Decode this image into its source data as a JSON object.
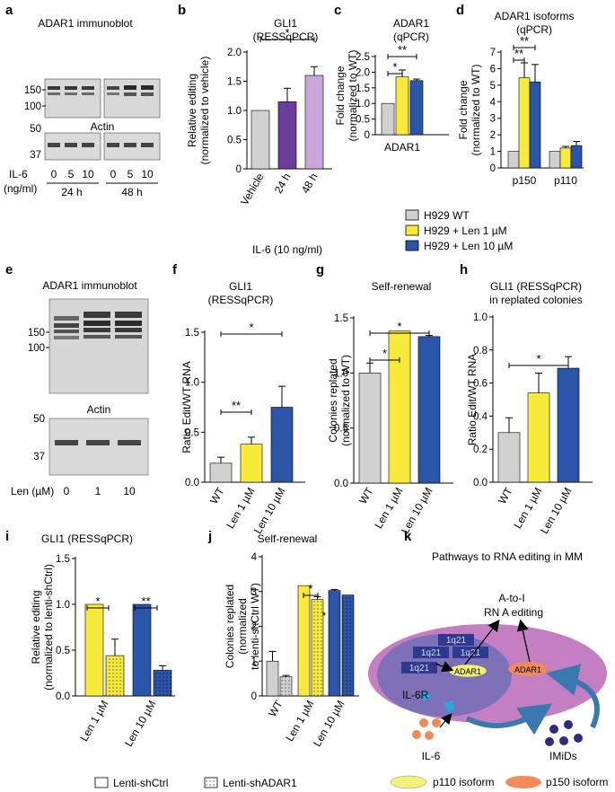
{
  "colors": {
    "wt": "#d0d0d0",
    "len1": "#f7ea3a",
    "len10": "#2a55a8",
    "p24": "#6a3d9a",
    "p48": "#c8a8d8",
    "cell_outer": "#c47ec2",
    "cell_inner": "#7d70b8",
    "box": "#2e3a8f",
    "ellipse_yellow": "#f3f07a",
    "ellipse_orange": "#f08a5a",
    "arrow": "#3a78b0",
    "imid": "#2d2a80"
  },
  "panel_labels": {
    "a": "a",
    "b": "b",
    "c": "c",
    "d": "d",
    "e": "e",
    "f": "f",
    "g": "g",
    "h": "h",
    "i": "i",
    "j": "j",
    "k": "k"
  },
  "panel_a": {
    "title": "ADAR1 immunoblot",
    "mw_top": [
      "150",
      "100"
    ],
    "actin": "Actin",
    "mw_bottom": [
      "50",
      "37"
    ],
    "il6": "IL-6",
    "unit": "(ng/ml)",
    "doses": [
      "0",
      "5",
      "10",
      "0",
      "5",
      "10"
    ],
    "times": [
      "24 h",
      "48 h"
    ]
  },
  "panel_e": {
    "title": "ADAR1 immunoblot",
    "mw_top": [
      "150",
      "100"
    ],
    "actin": "Actin",
    "mw_bottom": [
      "50",
      "37"
    ],
    "len_label": "Len (µM)",
    "doses": [
      "0",
      "1",
      "10"
    ]
  },
  "legend_cd": [
    "H929 WT",
    "H929 + Len 1 µM",
    "H929 + Len 10 µM"
  ],
  "legend_ij": [
    "Lenti-shCtrl",
    "Lenti-shADAR1"
  ],
  "chart_data": [
    {
      "id": "b",
      "type": "bar",
      "title": [
        "GLI1",
        "(RESSqPCR)"
      ],
      "ylabel": [
        "Relative editing",
        "(normalized to vehicle)"
      ],
      "xlabel": "IL-6 (10 ng/ml)",
      "categories": [
        "Vehicle",
        "24 h",
        "48 h"
      ],
      "values": [
        1.0,
        1.15,
        1.6
      ],
      "errors": [
        0,
        0.23,
        0.15
      ],
      "ylim": [
        0,
        2.0
      ],
      "yticks": [
        "0",
        "0.5",
        "1.0",
        "1.5",
        "2.0"
      ],
      "significance": [
        {
          "from": 0,
          "to": 2,
          "label": "*"
        }
      ]
    },
    {
      "id": "c",
      "type": "bar",
      "title": [
        "ADAR1",
        "(qPCR)"
      ],
      "ylabel": [
        "Fold change",
        "(normalized to WT)"
      ],
      "categories": [
        "ADAR1"
      ],
      "series": [
        {
          "name": "H929 WT",
          "values": [
            1.0
          ],
          "errors": [
            0
          ]
        },
        {
          "name": "H929 + Len 1 µM",
          "values": [
            1.85
          ],
          "errors": [
            0.22
          ]
        },
        {
          "name": "H929 + Len 10 µM",
          "values": [
            1.73
          ],
          "errors": [
            0.05
          ]
        }
      ],
      "ylim": [
        0,
        2.5
      ],
      "yticks": [
        "0",
        "0.5",
        "1.0",
        "1.5",
        "2.0",
        "2.5"
      ],
      "significance": [
        {
          "label": "*"
        },
        {
          "label": "**"
        }
      ]
    },
    {
      "id": "d",
      "type": "bar",
      "title": [
        "ADAR1 isoforms",
        "(qPCR)"
      ],
      "ylabel": [
        "Fold change",
        "(normalized to WT)"
      ],
      "categories": [
        "p150",
        "p110"
      ],
      "series": [
        {
          "name": "H929 WT",
          "values": [
            1.0,
            1.0
          ],
          "errors": [
            0,
            0
          ]
        },
        {
          "name": "H929 + Len 1 µM",
          "values": [
            5.45,
            1.2
          ],
          "errors": [
            0.9,
            0.1
          ]
        },
        {
          "name": "H929 + Len 10 µM",
          "values": [
            5.2,
            1.35
          ],
          "errors": [
            1.05,
            0.25
          ]
        }
      ],
      "ylim": [
        0,
        7
      ],
      "yticks": [
        "0",
        "1",
        "2",
        "3",
        "4",
        "5",
        "6",
        "7"
      ],
      "significance": [
        {
          "label": "**"
        },
        {
          "label": "**"
        }
      ]
    },
    {
      "id": "f",
      "type": "bar",
      "title": [
        "GLI1",
        "(RESSqPCR)"
      ],
      "ylabel": [
        "Ratio Edit/WT RNA"
      ],
      "categories": [
        "WT",
        "Len 1 µM",
        "Len 10 µM"
      ],
      "values": [
        0.19,
        0.38,
        0.75
      ],
      "errors": [
        0.06,
        0.07,
        0.21
      ],
      "ylim": [
        0,
        1.5
      ],
      "yticks": [
        "0.0",
        "0.5",
        "1.0",
        "1.5"
      ],
      "significance": [
        {
          "from": 0,
          "to": 1,
          "label": "**"
        },
        {
          "from": 0,
          "to": 2,
          "label": "*"
        }
      ]
    },
    {
      "id": "g",
      "type": "bar",
      "title": [
        "Self-renewal"
      ],
      "ylabel": [
        "Colonies replated",
        "(normalized to WT)"
      ],
      "categories": [
        "WT",
        "Len 1 µM",
        "Len 10 µM"
      ],
      "values": [
        1.0,
        1.38,
        1.33
      ],
      "errors": [
        0.09,
        0,
        0.01
      ],
      "ylim": [
        0,
        1.5
      ],
      "yticks": [
        "0.0",
        "0.5",
        "1.0",
        "1.5"
      ],
      "significance": [
        {
          "from": 0,
          "to": 1,
          "label": "*"
        },
        {
          "from": 0,
          "to": 2,
          "label": "*"
        }
      ]
    },
    {
      "id": "h",
      "type": "bar",
      "title": [
        "GLI1 (RESSqPCR)",
        "in replated colonies"
      ],
      "ylabel": [
        "Ratio Edit/WT RNA"
      ],
      "categories": [
        "WT",
        "Len 1 µM",
        "Len 10 µM"
      ],
      "values": [
        0.3,
        0.54,
        0.69
      ],
      "errors": [
        0.09,
        0.12,
        0.07
      ],
      "ylim": [
        0,
        1.0
      ],
      "yticks": [
        "0.0",
        "0.2",
        "0.4",
        "0.6",
        "0.8",
        "1.0"
      ],
      "significance": [
        {
          "from": 0,
          "to": 2,
          "label": "*"
        }
      ]
    },
    {
      "id": "i",
      "type": "bar",
      "title": [
        "GLI1 (RESSqPCR)"
      ],
      "ylabel": [
        "Relative editing",
        "(normalized to lenti-shCtrl)"
      ],
      "categories": [
        "Len 1 µM",
        "Len 10 µM"
      ],
      "series": [
        {
          "name": "Lenti-shCtrl",
          "values": [
            1.0,
            1.0
          ],
          "errors": [
            0,
            0
          ]
        },
        {
          "name": "Lenti-shADAR1",
          "values": [
            0.44,
            0.28
          ],
          "errors": [
            0.18,
            0.05
          ]
        }
      ],
      "ylim": [
        0,
        1.5
      ],
      "yticks": [
        "0.0",
        "0.5",
        "1.0",
        "1.5"
      ],
      "significance": [
        {
          "label": "*"
        },
        {
          "label": "**"
        }
      ]
    },
    {
      "id": "j",
      "type": "bar",
      "title": [
        "Self-renewal"
      ],
      "ylabel": [
        "Colonies replated",
        "(normalized",
        "to lenti-shCtrl WT)"
      ],
      "categories": [
        "WT",
        "Len 1 µM",
        "Len 10 µM"
      ],
      "series": [
        {
          "name": "Lenti-shCtrl",
          "values": [
            1.0,
            3.17,
            3.03
          ],
          "errors": [
            0.28,
            0,
            0.03
          ]
        },
        {
          "name": "Lenti-shADAR1",
          "values": [
            0.55,
            2.77,
            2.9
          ],
          "errors": [
            0.04,
            0.08,
            0
          ]
        }
      ],
      "ylim": [
        0,
        4
      ],
      "yticks": [
        "0",
        "1",
        "2",
        "3",
        "4"
      ],
      "significance": [
        {
          "label": "*"
        }
      ],
      "extra_marks": [
        "*"
      ]
    }
  ],
  "panel_k": {
    "title": "Pathways to RNA editing in MM",
    "editing": [
      "A-to-I",
      "RN A editing"
    ],
    "chrom": [
      "1q21",
      "1q21",
      "1q21",
      "1q21"
    ],
    "adar1": "ADAR1",
    "il6r": "IL-6R",
    "il6": "IL-6",
    "imids": "IMiDs",
    "legend": [
      "p110 isoform",
      "p150 isoform"
    ]
  }
}
